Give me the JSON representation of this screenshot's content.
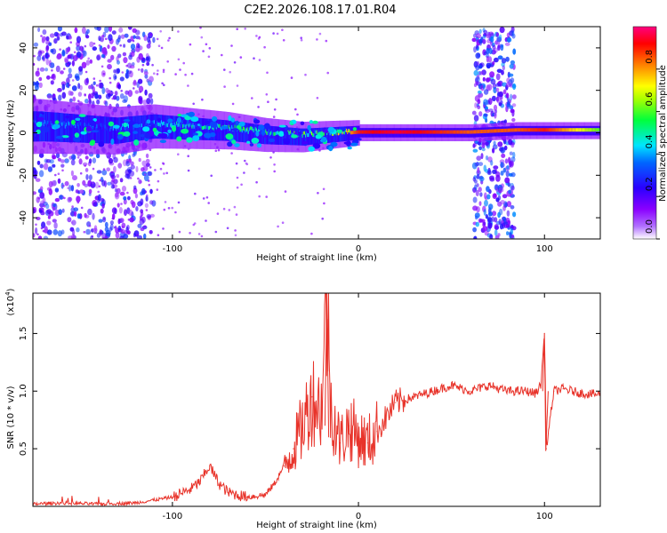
{
  "title": "C2E2.2026.108.17.01.R04",
  "colors": {
    "snr_line": "#e8332a",
    "axis": "#000000",
    "background": "#ffffff"
  },
  "chart_data": [
    {
      "type": "heatmap",
      "name": "spectrogram",
      "xlabel": "Height of straight line (km)",
      "ylabel": "Frequency (Hz)",
      "xlim": [
        -175,
        130
      ],
      "ylim": [
        -50,
        50
      ],
      "xticks": [
        -100,
        0,
        100
      ],
      "yticks": [
        -40,
        -20,
        0,
        20,
        40
      ],
      "colorbar": {
        "label": "Normalized spectral amplitude",
        "range": [
          0,
          1
        ],
        "ticks": [
          "0.0",
          "0.2",
          "0.4",
          "0.6",
          "0.8"
        ],
        "palette": [
          "#ffffff",
          "#8a00ff",
          "#0000ff",
          "#00e5ff",
          "#00ff3c",
          "#ffff00",
          "#ff8000",
          "#ff0000",
          "#ff0080"
        ]
      },
      "ridge": {
        "x": [
          -170,
          -150,
          -130,
          -110,
          -90,
          -70,
          -50,
          -30,
          -15,
          0,
          20,
          40,
          60,
          85,
          100,
          130
        ],
        "freq": [
          3,
          2,
          1,
          3,
          2,
          1,
          -1,
          -2,
          -1,
          0,
          0,
          0,
          0,
          1,
          1,
          1
        ],
        "amp": [
          0.35,
          0.35,
          0.35,
          0.4,
          0.45,
          0.5,
          0.5,
          0.55,
          0.6,
          0.9,
          0.95,
          0.9,
          0.85,
          0.85,
          0.9,
          0.6
        ]
      },
      "broadband_bands": [
        {
          "x_from": -175,
          "x_to": -110,
          "amp": 0.3
        },
        {
          "x_from": 62,
          "x_to": 84,
          "amp": 0.35
        }
      ]
    },
    {
      "type": "line",
      "name": "snr",
      "xlabel": "Height of straight line (km)",
      "ylabel": "SNR (10 * v/v)",
      "multiplier_label": "(x10",
      "multiplier_exp": "4",
      "xlim": [
        -175,
        130
      ],
      "ylim": [
        0,
        1.85
      ],
      "xticks": [
        -100,
        0,
        100
      ],
      "yticks": [
        0.5,
        1.0,
        1.5
      ],
      "x": [
        -175,
        -160,
        -140,
        -120,
        -100,
        -90,
        -85,
        -80,
        -75,
        -70,
        -60,
        -50,
        -45,
        -40,
        -35,
        -30,
        -25,
        -20,
        -17,
        -15,
        -10,
        -5,
        0,
        5,
        10,
        20,
        30,
        40,
        50,
        60,
        70,
        80,
        90,
        95,
        98,
        100,
        101,
        105,
        110,
        120,
        130
      ],
      "y": [
        0.02,
        0.03,
        0.02,
        0.03,
        0.08,
        0.15,
        0.22,
        0.35,
        0.2,
        0.12,
        0.08,
        0.1,
        0.2,
        0.35,
        0.5,
        0.7,
        0.95,
        0.85,
        1.8,
        0.9,
        0.55,
        0.7,
        0.6,
        0.55,
        0.65,
        0.9,
        0.95,
        1.0,
        1.05,
        1.0,
        1.05,
        1.0,
        1.0,
        0.98,
        1.05,
        1.5,
        0.5,
        1.0,
        1.02,
        0.98,
        0.97
      ]
    }
  ]
}
